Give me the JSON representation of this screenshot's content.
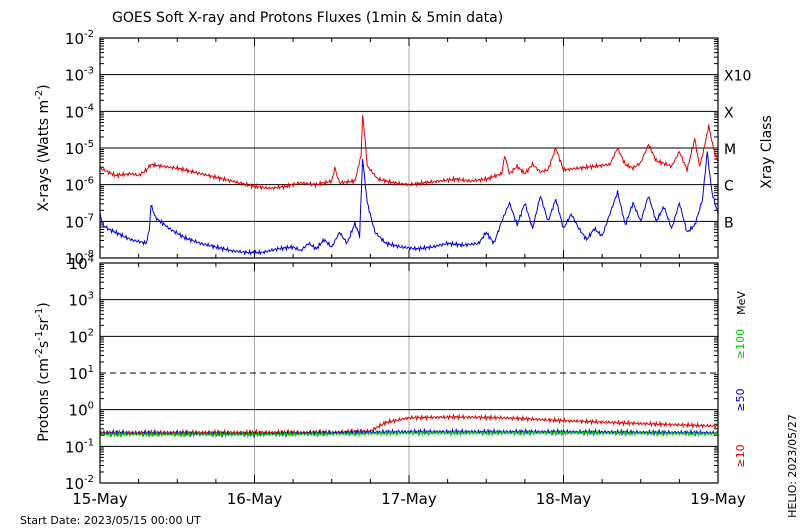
{
  "chart_data": [
    {
      "type": "line",
      "title": "GOES Soft X-ray and Protons Fluxes   (1min & 5min data)",
      "ylabel_main": "X-rays (Watts m",
      "ylabel_sup": "-2",
      "ylabel_close": ")",
      "yscale": "log",
      "ylim_exp": [
        -8,
        -2
      ],
      "y_tick_exponents": [
        "-2",
        "-3",
        "-4",
        "-5",
        "-6",
        "-7",
        "-8"
      ],
      "y_tick_base": "10",
      "xray_class_label": "Xray Class",
      "xray_classes": [
        {
          "label": "X10",
          "exp": -3
        },
        {
          "label": "X",
          "exp": -4
        },
        {
          "label": "M",
          "exp": -5
        },
        {
          "label": "C",
          "exp": -6
        },
        {
          "label": "B",
          "exp": -7
        }
      ],
      "x_days": [
        0,
        4
      ],
      "series": [
        {
          "color": "#dd0000",
          "points": [
            [
              0,
              -5.55
            ],
            [
              0.05,
              -5.65
            ],
            [
              0.1,
              -5.75
            ],
            [
              0.2,
              -5.7
            ],
            [
              0.25,
              -5.75
            ],
            [
              0.3,
              -5.6
            ],
            [
              0.33,
              -5.45
            ],
            [
              0.4,
              -5.5
            ],
            [
              0.5,
              -5.55
            ],
            [
              0.6,
              -5.65
            ],
            [
              0.7,
              -5.75
            ],
            [
              0.8,
              -5.85
            ],
            [
              0.9,
              -5.95
            ],
            [
              1.0,
              -6.05
            ],
            [
              1.1,
              -6.1
            ],
            [
              1.2,
              -6.05
            ],
            [
              1.3,
              -5.95
            ],
            [
              1.4,
              -6.0
            ],
            [
              1.5,
              -5.9
            ],
            [
              1.52,
              -5.55
            ],
            [
              1.55,
              -5.95
            ],
            [
              1.65,
              -5.9
            ],
            [
              1.69,
              -5.2
            ],
            [
              1.7,
              -4.05
            ],
            [
              1.71,
              -4.5
            ],
            [
              1.73,
              -5.5
            ],
            [
              1.8,
              -5.85
            ],
            [
              1.9,
              -5.95
            ],
            [
              2.0,
              -6.0
            ],
            [
              2.1,
              -5.95
            ],
            [
              2.2,
              -5.9
            ],
            [
              2.3,
              -5.85
            ],
            [
              2.4,
              -5.9
            ],
            [
              2.5,
              -5.85
            ],
            [
              2.6,
              -5.7
            ],
            [
              2.62,
              -5.2
            ],
            [
              2.65,
              -5.7
            ],
            [
              2.7,
              -5.5
            ],
            [
              2.75,
              -5.7
            ],
            [
              2.8,
              -5.45
            ],
            [
              2.85,
              -5.65
            ],
            [
              2.9,
              -5.6
            ],
            [
              2.95,
              -5.0
            ],
            [
              3.0,
              -5.6
            ],
            [
              3.1,
              -5.55
            ],
            [
              3.2,
              -5.5
            ],
            [
              3.3,
              -5.45
            ],
            [
              3.35,
              -5.0
            ],
            [
              3.4,
              -5.45
            ],
            [
              3.45,
              -5.55
            ],
            [
              3.5,
              -5.4
            ],
            [
              3.55,
              -4.9
            ],
            [
              3.6,
              -5.35
            ],
            [
              3.7,
              -5.5
            ],
            [
              3.75,
              -5.1
            ],
            [
              3.8,
              -5.6
            ],
            [
              3.85,
              -4.75
            ],
            [
              3.88,
              -5.5
            ],
            [
              3.9,
              -5.2
            ],
            [
              3.94,
              -4.4
            ],
            [
              3.97,
              -5.0
            ],
            [
              4.0,
              -5.4
            ]
          ]
        },
        {
          "color": "#0000dd",
          "points": [
            [
              0,
              -6.8
            ],
            [
              0.02,
              -7.1
            ],
            [
              0.05,
              -7.2
            ],
            [
              0.1,
              -7.3
            ],
            [
              0.2,
              -7.5
            ],
            [
              0.3,
              -7.6
            ],
            [
              0.32,
              -7.2
            ],
            [
              0.33,
              -6.55
            ],
            [
              0.36,
              -6.9
            ],
            [
              0.45,
              -7.2
            ],
            [
              0.55,
              -7.45
            ],
            [
              0.65,
              -7.6
            ],
            [
              0.75,
              -7.7
            ],
            [
              0.85,
              -7.8
            ],
            [
              0.95,
              -7.85
            ],
            [
              1.05,
              -7.85
            ],
            [
              1.15,
              -7.75
            ],
            [
              1.25,
              -7.7
            ],
            [
              1.3,
              -7.8
            ],
            [
              1.35,
              -7.6
            ],
            [
              1.4,
              -7.75
            ],
            [
              1.45,
              -7.5
            ],
            [
              1.5,
              -7.7
            ],
            [
              1.55,
              -7.3
            ],
            [
              1.6,
              -7.6
            ],
            [
              1.65,
              -7.05
            ],
            [
              1.68,
              -7.4
            ],
            [
              1.7,
              -5.3
            ],
            [
              1.73,
              -6.5
            ],
            [
              1.78,
              -7.3
            ],
            [
              1.85,
              -7.6
            ],
            [
              1.95,
              -7.7
            ],
            [
              2.05,
              -7.75
            ],
            [
              2.15,
              -7.7
            ],
            [
              2.25,
              -7.6
            ],
            [
              2.35,
              -7.65
            ],
            [
              2.45,
              -7.6
            ],
            [
              2.5,
              -7.3
            ],
            [
              2.55,
              -7.6
            ],
            [
              2.6,
              -7.0
            ],
            [
              2.65,
              -6.5
            ],
            [
              2.7,
              -7.1
            ],
            [
              2.75,
              -6.5
            ],
            [
              2.8,
              -7.2
            ],
            [
              2.85,
              -6.3
            ],
            [
              2.9,
              -7.0
            ],
            [
              2.95,
              -6.4
            ],
            [
              3.0,
              -7.2
            ],
            [
              3.05,
              -6.8
            ],
            [
              3.1,
              -7.2
            ],
            [
              3.15,
              -7.5
            ],
            [
              3.2,
              -7.2
            ],
            [
              3.25,
              -7.4
            ],
            [
              3.3,
              -6.8
            ],
            [
              3.35,
              -6.2
            ],
            [
              3.4,
              -7.1
            ],
            [
              3.45,
              -6.5
            ],
            [
              3.5,
              -7.0
            ],
            [
              3.55,
              -6.3
            ],
            [
              3.6,
              -7.0
            ],
            [
              3.65,
              -6.6
            ],
            [
              3.7,
              -7.2
            ],
            [
              3.75,
              -6.5
            ],
            [
              3.8,
              -7.3
            ],
            [
              3.85,
              -7.1
            ],
            [
              3.9,
              -6.4
            ],
            [
              3.93,
              -5.1
            ],
            [
              3.96,
              -6.2
            ],
            [
              4.0,
              -6.8
            ]
          ]
        }
      ]
    },
    {
      "type": "line",
      "ylabel_main": "Protons (cm",
      "ylabel_sup1": "-2",
      "ylabel_mid": "s",
      "ylabel_sup2": "-1",
      "ylabel_mid2": "sr",
      "ylabel_sup3": "-1",
      "ylabel_close": ")",
      "yscale": "log",
      "ylim_exp": [
        -2,
        4
      ],
      "y_tick_exponents": [
        "4",
        "3",
        "2",
        "1",
        "0",
        "-1",
        "-2"
      ],
      "y_tick_base": "10",
      "dashed_level_exp": 1,
      "units": "MeV",
      "energy_labels": [
        {
          "label": "≥100",
          "color": "#00cc00"
        },
        {
          "label": "≥50",
          "color": "#0000dd"
        },
        {
          "label": "≥10",
          "color": "#dd0000"
        }
      ],
      "series": [
        {
          "color": "#dd0000",
          "points": [
            [
              0,
              -0.62
            ],
            [
              0.8,
              -0.62
            ],
            [
              1.5,
              -0.62
            ],
            [
              1.75,
              -0.58
            ],
            [
              1.85,
              -0.35
            ],
            [
              2.0,
              -0.22
            ],
            [
              2.3,
              -0.2
            ],
            [
              2.6,
              -0.22
            ],
            [
              3.0,
              -0.3
            ],
            [
              3.5,
              -0.38
            ],
            [
              4.0,
              -0.45
            ]
          ]
        },
        {
          "color": "#0000dd",
          "points": [
            [
              0,
              -0.65
            ],
            [
              1.0,
              -0.66
            ],
            [
              2.0,
              -0.6
            ],
            [
              3.0,
              -0.6
            ],
            [
              4.0,
              -0.63
            ]
          ]
        },
        {
          "color": "#00cc00",
          "points": [
            [
              0,
              -0.67
            ],
            [
              1.0,
              -0.68
            ],
            [
              2.0,
              -0.64
            ],
            [
              3.0,
              -0.64
            ],
            [
              4.0,
              -0.66
            ]
          ]
        }
      ]
    }
  ],
  "x_labels": [
    "15-May",
    "16-May",
    "17-May",
    "18-May",
    "19-May"
  ],
  "start_date": "Start Date: 2023/05/15 00:00 UT",
  "helio": "HELIO: 2023/05/27"
}
